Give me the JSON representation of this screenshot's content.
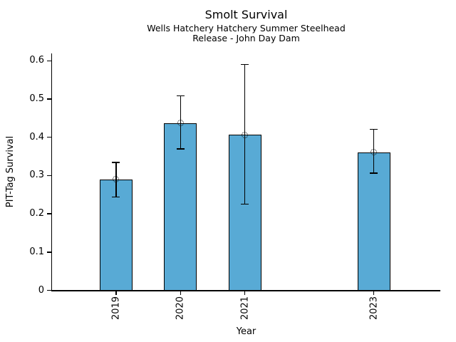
{
  "chart_data": {
    "type": "bar",
    "title": "Smolt Survival",
    "subtitle_line1": "Wells Hatchery Hatchery Summer Steelhead",
    "subtitle_line2": "Release - John Day Dam",
    "xlabel": "Year",
    "ylabel": "PIT-Tag Survival",
    "categories": [
      "2019",
      "2020",
      "2021",
      "2023"
    ],
    "years": [
      2019,
      2020,
      2021,
      2023
    ],
    "values": [
      0.29,
      0.437,
      0.406,
      0.361
    ],
    "error_low": [
      0.244,
      0.37,
      0.225,
      0.306
    ],
    "error_high": [
      0.334,
      0.508,
      0.59,
      0.421
    ],
    "ytick_labels": [
      "0",
      "0.1",
      "0.2",
      "0.3",
      "0.4",
      "0.5",
      "0.6"
    ],
    "ytick_values": [
      0,
      0.1,
      0.2,
      0.3,
      0.4,
      0.5,
      0.6
    ],
    "ylim": [
      0,
      0.62
    ],
    "xlim": [
      2018,
      2024
    ],
    "grid": false,
    "legend_position": "none",
    "bar_color": "#58aad5",
    "bar_edge_color": "#000000",
    "error_color": "#000000",
    "marker": "open-circle"
  }
}
